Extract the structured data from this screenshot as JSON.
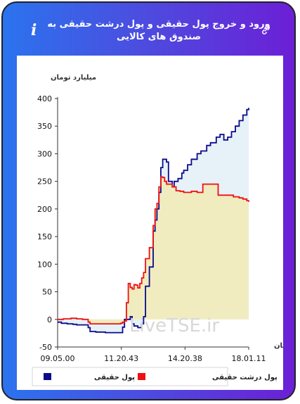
{
  "header": {
    "title": "ورود و خروج پول حقیقی و پول درشت حقیقی به صندوق های کالایی",
    "info_icon": "i"
  },
  "chart_data": {
    "type": "area",
    "ylabel": "میلیارد تومان",
    "xlabel": "زمان",
    "ylim": [
      -50,
      400
    ],
    "yticks": [
      -50,
      0,
      50,
      100,
      150,
      200,
      250,
      300,
      350,
      400
    ],
    "xtick_labels": [
      "09.05.00",
      "11.20.43",
      "14.20.38",
      "18.01.11"
    ],
    "grid": false,
    "legend_position": "bottom",
    "watermark": "LiveTSE.ir",
    "series": [
      {
        "name": "پول حقیقی",
        "color": "#0a0a8a",
        "fill": "#e6f1f8",
        "points": [
          [
            0,
            -5
          ],
          [
            0.02,
            -7
          ],
          [
            0.05,
            -8
          ],
          [
            0.08,
            -9
          ],
          [
            0.1,
            -10
          ],
          [
            0.13,
            -10
          ],
          [
            0.16,
            -15
          ],
          [
            0.17,
            -22
          ],
          [
            0.2,
            -23
          ],
          [
            0.25,
            -24
          ],
          [
            0.3,
            -24
          ],
          [
            0.33,
            -24
          ],
          [
            0.34,
            -14
          ],
          [
            0.35,
            0
          ],
          [
            0.38,
            5
          ],
          [
            0.39,
            -8
          ],
          [
            0.4,
            -12
          ],
          [
            0.42,
            -15
          ],
          [
            0.44,
            -8
          ],
          [
            0.45,
            5
          ],
          [
            0.46,
            60
          ],
          [
            0.48,
            95
          ],
          [
            0.5,
            160
          ],
          [
            0.51,
            180
          ],
          [
            0.52,
            200
          ],
          [
            0.53,
            230
          ],
          [
            0.54,
            275
          ],
          [
            0.55,
            290
          ],
          [
            0.56,
            290
          ],
          [
            0.57,
            285
          ],
          [
            0.58,
            250
          ],
          [
            0.6,
            240
          ],
          [
            0.61,
            250
          ],
          [
            0.63,
            255
          ],
          [
            0.65,
            265
          ],
          [
            0.66,
            270
          ],
          [
            0.68,
            280
          ],
          [
            0.7,
            290
          ],
          [
            0.73,
            300
          ],
          [
            0.75,
            305
          ],
          [
            0.78,
            315
          ],
          [
            0.8,
            320
          ],
          [
            0.83,
            330
          ],
          [
            0.85,
            335
          ],
          [
            0.87,
            325
          ],
          [
            0.89,
            330
          ],
          [
            0.91,
            340
          ],
          [
            0.93,
            350
          ],
          [
            0.95,
            360
          ],
          [
            0.97,
            370
          ],
          [
            0.99,
            380
          ],
          [
            1,
            383
          ]
        ]
      },
      {
        "name": "پول درشت حقیقی",
        "color": "#ee1111",
        "fill": "#f0ecbf",
        "points": [
          [
            0,
            0
          ],
          [
            0.03,
            1
          ],
          [
            0.07,
            2
          ],
          [
            0.1,
            1
          ],
          [
            0.13,
            0
          ],
          [
            0.16,
            -5
          ],
          [
            0.17,
            -8
          ],
          [
            0.2,
            -8
          ],
          [
            0.25,
            -8
          ],
          [
            0.3,
            -8
          ],
          [
            0.33,
            -7
          ],
          [
            0.34,
            -5
          ],
          [
            0.35,
            -3
          ],
          [
            0.36,
            30
          ],
          [
            0.37,
            65
          ],
          [
            0.38,
            58
          ],
          [
            0.39,
            55
          ],
          [
            0.4,
            63
          ],
          [
            0.41,
            62
          ],
          [
            0.42,
            57
          ],
          [
            0.43,
            65
          ],
          [
            0.44,
            75
          ],
          [
            0.45,
            85
          ],
          [
            0.46,
            110
          ],
          [
            0.48,
            130
          ],
          [
            0.5,
            170
          ],
          [
            0.51,
            200
          ],
          [
            0.52,
            210
          ],
          [
            0.53,
            240
          ],
          [
            0.54,
            258
          ],
          [
            0.55,
            257
          ],
          [
            0.56,
            250
          ],
          [
            0.57,
            245
          ],
          [
            0.6,
            240
          ],
          [
            0.62,
            233
          ],
          [
            0.64,
            232
          ],
          [
            0.66,
            230
          ],
          [
            0.7,
            232
          ],
          [
            0.73,
            230
          ],
          [
            0.76,
            245
          ],
          [
            0.8,
            245
          ],
          [
            0.84,
            225
          ],
          [
            0.88,
            225
          ],
          [
            0.92,
            222
          ],
          [
            0.95,
            220
          ],
          [
            0.97,
            218
          ],
          [
            0.99,
            215
          ],
          [
            1,
            213
          ]
        ]
      }
    ]
  }
}
